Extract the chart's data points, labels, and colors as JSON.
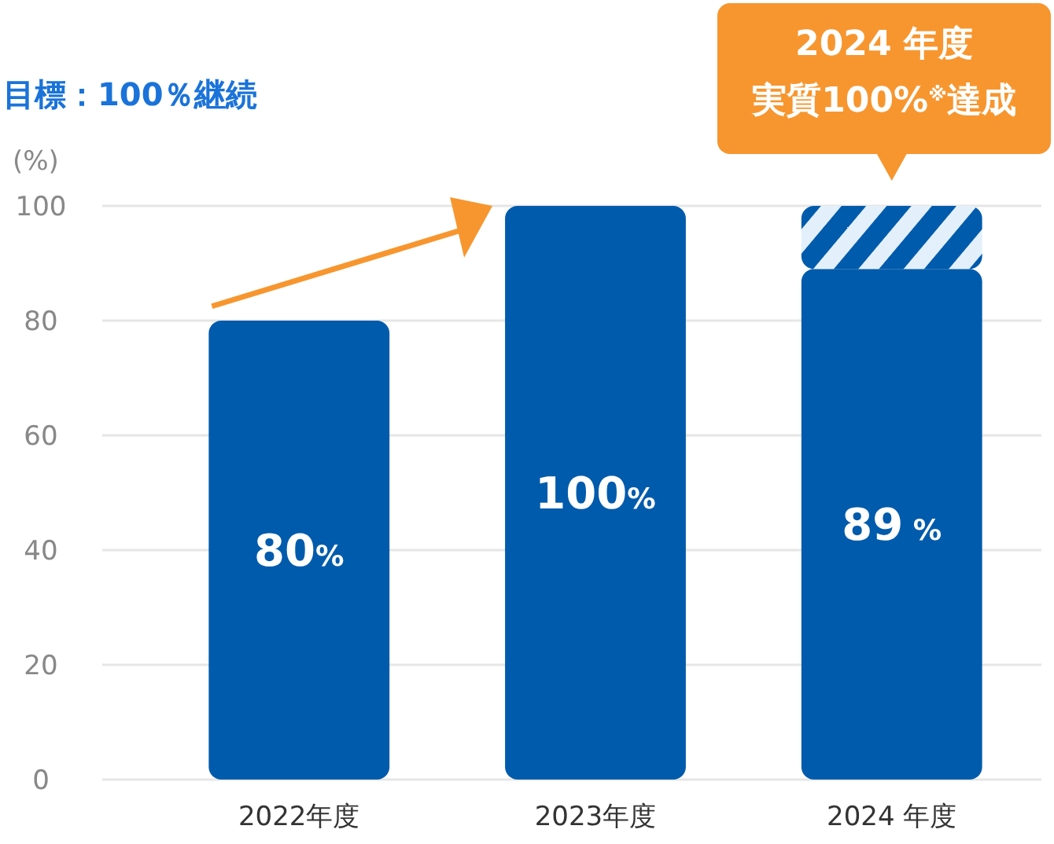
{
  "chart_data": {
    "type": "bar",
    "title": "目標：100％継続",
    "ylabel": "(%)",
    "categories": [
      "2022年度",
      "2023年度",
      "2024 年度"
    ],
    "stacked": true,
    "series": [
      {
        "color": "#005bac",
        "values": [
          80,
          100,
          89
        ],
        "value_labels": [
          "80%",
          "100%",
          "89 %"
        ]
      },
      {
        "color": "#e3f0fb",
        "values": [
          0,
          0,
          11
        ]
      }
    ],
    "ylim": [
      0,
      100
    ],
    "yticks": [
      0,
      20,
      40,
      60,
      80,
      100
    ],
    "grid": "y",
    "annotations": [
      "2024 年度",
      "実質100%$^{※}$達成"
    ]
  }
}
